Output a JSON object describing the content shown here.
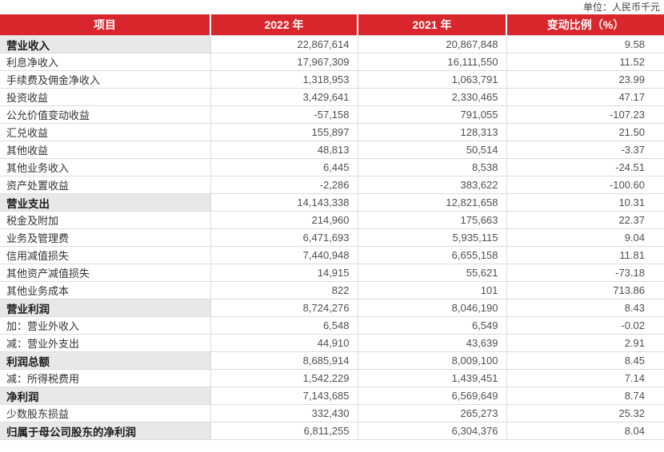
{
  "unit_note": "单位：人民币千元",
  "colors": {
    "header_bg": "#d8262c",
    "header_text": "#ffffff",
    "highlight_row_bg": "#e8e8e8",
    "border": "#dcdcdc",
    "label_text": "#333333",
    "number_text": "#4f4f4f"
  },
  "table": {
    "columns": [
      {
        "label": "项目"
      },
      {
        "label": "2022 年"
      },
      {
        "label": "2021 年"
      },
      {
        "label": "变动比例（%）"
      }
    ],
    "rows": [
      {
        "item": "营业收入",
        "y2022": "22,867,614",
        "y2021": "20,867,848",
        "change": "9.58",
        "highlight": true
      },
      {
        "item": "利息净收入",
        "y2022": "17,967,309",
        "y2021": "16,111,550",
        "change": "11.52",
        "highlight": false
      },
      {
        "item": "手续费及佣金净收入",
        "y2022": "1,318,953",
        "y2021": "1,063,791",
        "change": "23.99",
        "highlight": false
      },
      {
        "item": "投资收益",
        "y2022": "3,429,641",
        "y2021": "2,330,465",
        "change": "47.17",
        "highlight": false
      },
      {
        "item": "公允价值变动收益",
        "y2022": "-57,158",
        "y2021": "791,055",
        "change": "-107.23",
        "highlight": false
      },
      {
        "item": "汇兑收益",
        "y2022": "155,897",
        "y2021": "128,313",
        "change": "21.50",
        "highlight": false
      },
      {
        "item": "其他收益",
        "y2022": "48,813",
        "y2021": "50,514",
        "change": "-3.37",
        "highlight": false
      },
      {
        "item": "其他业务收入",
        "y2022": "6,445",
        "y2021": "8,538",
        "change": "-24.51",
        "highlight": false
      },
      {
        "item": "资产处置收益",
        "y2022": "-2,286",
        "y2021": "383,622",
        "change": "-100.60",
        "highlight": false
      },
      {
        "item": "营业支出",
        "y2022": "14,143,338",
        "y2021": "12,821,658",
        "change": "10.31",
        "highlight": true
      },
      {
        "item": "税金及附加",
        "y2022": "214,960",
        "y2021": "175,663",
        "change": "22.37",
        "highlight": false
      },
      {
        "item": "业务及管理费",
        "y2022": "6,471,693",
        "y2021": "5,935,115",
        "change": "9.04",
        "highlight": false
      },
      {
        "item": "信用减值损失",
        "y2022": "7,440,948",
        "y2021": "6,655,158",
        "change": "11.81",
        "highlight": false
      },
      {
        "item": "其他资产减值损失",
        "y2022": "14,915",
        "y2021": "55,621",
        "change": "-73.18",
        "highlight": false
      },
      {
        "item": "其他业务成本",
        "y2022": "822",
        "y2021": "101",
        "change": "713.86",
        "highlight": false
      },
      {
        "item": "营业利润",
        "y2022": "8,724,276",
        "y2021": "8,046,190",
        "change": "8.43",
        "highlight": true
      },
      {
        "item": "加：营业外收入",
        "y2022": "6,548",
        "y2021": "6,549",
        "change": "-0.02",
        "highlight": false
      },
      {
        "item": "减：营业外支出",
        "y2022": "44,910",
        "y2021": "43,639",
        "change": "2.91",
        "highlight": false
      },
      {
        "item": "利润总额",
        "y2022": "8,685,914",
        "y2021": "8,009,100",
        "change": "8.45",
        "highlight": true
      },
      {
        "item": "减：所得税费用",
        "y2022": "1,542,229",
        "y2021": "1,439,451",
        "change": "7.14",
        "highlight": false
      },
      {
        "item": "净利润",
        "y2022": "7,143,685",
        "y2021": "6,569,649",
        "change": "8.74",
        "highlight": true
      },
      {
        "item": "少数股东损益",
        "y2022": "332,430",
        "y2021": "265,273",
        "change": "25.32",
        "highlight": false
      },
      {
        "item": "归属于母公司股东的净利润",
        "y2022": "6,811,255",
        "y2021": "6,304,376",
        "change": "8.04",
        "highlight": true
      }
    ]
  }
}
